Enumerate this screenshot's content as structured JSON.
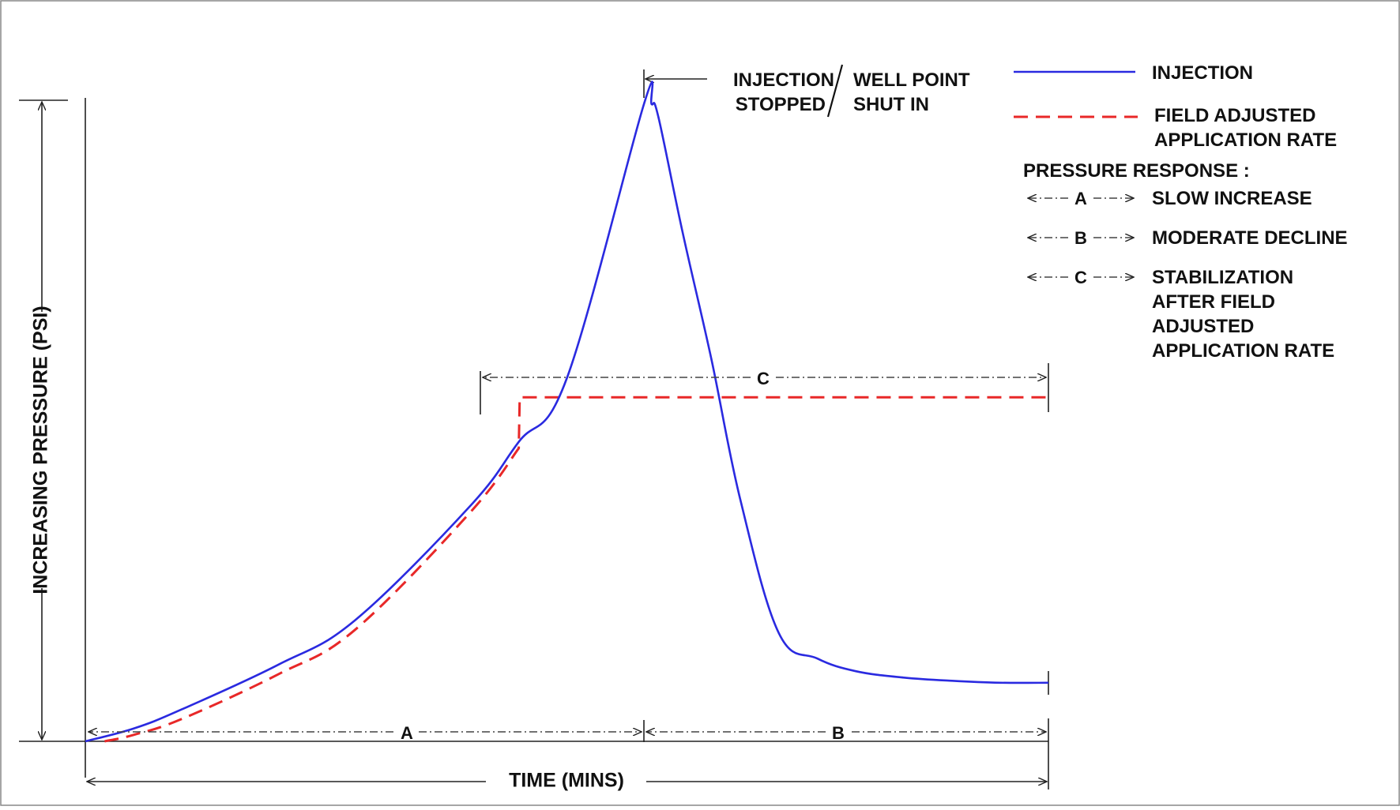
{
  "chart_data": {
    "type": "line",
    "title": "",
    "xlabel": "TIME (MINS)",
    "ylabel": "INCREASING PRESSURE (PSI)",
    "xlim": [
      0,
      100
    ],
    "ylim": [
      0,
      100
    ],
    "grid": false,
    "legend_position": "top-right",
    "series": [
      {
        "name": "INJECTION",
        "color": "#2a2ae0",
        "style": "solid",
        "x": [
          0,
          5,
          10,
          20,
          28,
          40,
          45,
          50,
          58,
          58.8,
          59.5,
          62,
          65,
          68,
          72,
          76,
          80,
          85,
          90,
          95,
          100
        ],
        "y": [
          0,
          2,
          5,
          12,
          19,
          37,
          47,
          57,
          100,
          100,
          98,
          80,
          60,
          38,
          17,
          13,
          11,
          10,
          9.5,
          9.2,
          9.2
        ]
      },
      {
        "name": "FIELD ADJUSTED APPLICATION RATE",
        "color": "#e82828",
        "style": "dashed",
        "x": [
          2,
          5,
          10,
          20,
          28,
          40,
          45,
          45.1,
          100
        ],
        "y": [
          0,
          1,
          3.5,
          10.5,
          17.5,
          36,
          46,
          54,
          54
        ]
      }
    ],
    "annotations": {
      "shut_in": {
        "line1_left": "INJECTION",
        "line1_right": "WELL POINT",
        "line2_left": "STOPPED",
        "line2_right": "SHUT IN",
        "x": 58.8
      },
      "phases": [
        {
          "label": "A",
          "x_start": 0,
          "x_end": 58.8,
          "meaning": "SLOW INCREASE"
        },
        {
          "label": "B",
          "x_start": 58.8,
          "x_end": 100,
          "meaning": "MODERATE DECLINE"
        },
        {
          "label": "C",
          "x_start": 45,
          "x_end": 100,
          "meaning": "STABILIZATION AFTER FIELD ADJUSTED APPLICATION RATE"
        }
      ]
    },
    "legend": {
      "injection_label": "INJECTION",
      "field_line1": "FIELD ADJUSTED",
      "field_line2": "APPLICATION RATE",
      "pressure_header": "PRESSURE RESPONSE :",
      "a_key": "A",
      "a_label": "SLOW INCREASE",
      "b_key": "B",
      "b_label": "MODERATE DECLINE",
      "c_key": "C",
      "c_lines": [
        "STABILIZATION",
        "AFTER FIELD",
        "ADJUSTED",
        "APPLICATION RATE"
      ]
    }
  }
}
